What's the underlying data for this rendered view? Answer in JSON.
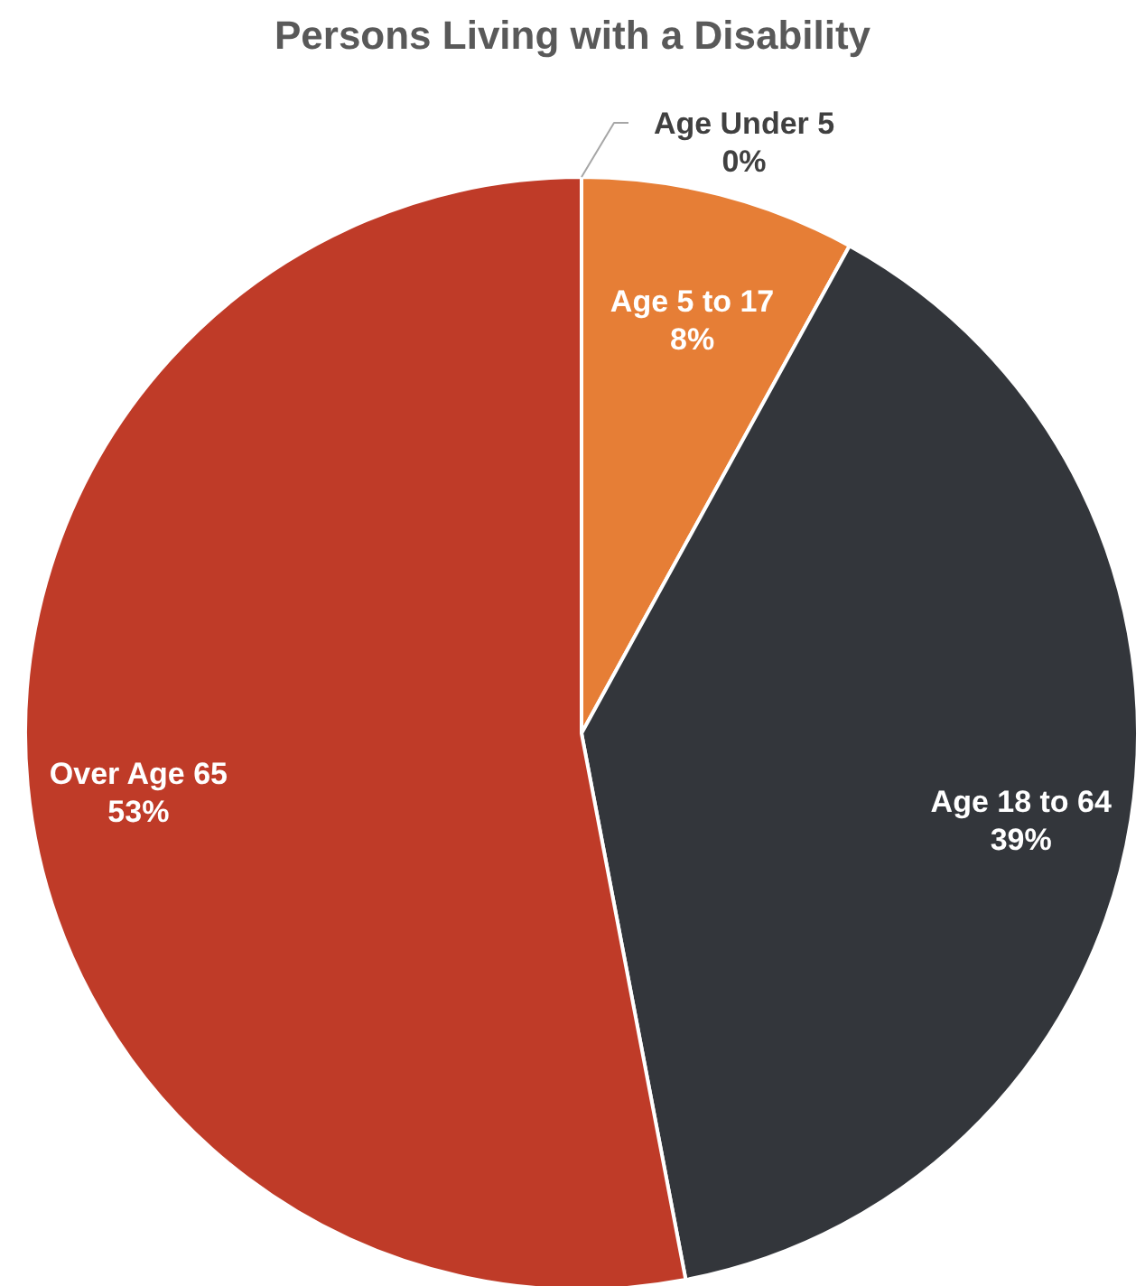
{
  "chart_data": {
    "type": "pie",
    "title": "Persons Living with a Disability",
    "categories": [
      "Age Under 5",
      "Age 5 to 17",
      "Age 18 to 64",
      "Over Age 65"
    ],
    "values": [
      0,
      8,
      39,
      53
    ],
    "value_labels": [
      "0%",
      "8%",
      "39%",
      "53%"
    ],
    "colors": [
      "#a5a5a5",
      "#e67e36",
      "#33363b",
      "#bf3b28"
    ]
  }
}
